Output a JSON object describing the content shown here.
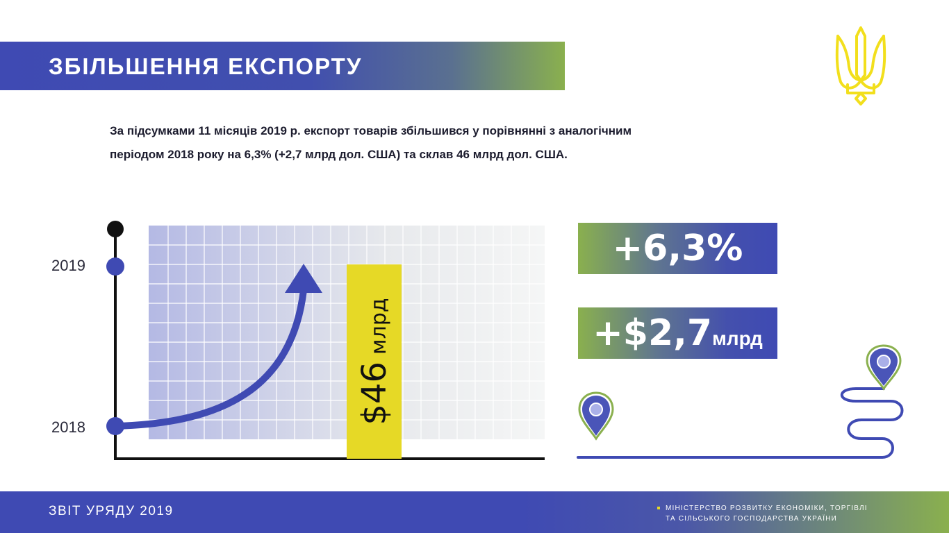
{
  "header": {
    "title": "ЗБІЛЬШЕННЯ ЕКСПОРТУ"
  },
  "emblem": {
    "icon": "trident-icon",
    "color": "#f2df1c"
  },
  "intro": {
    "line1": "За підсумками 11 місяців 2019 р. експорт товарів збільшився у порівнянні з аналогічним",
    "line2": "періодом 2018 року на 6,3% (+2,7 млрд дол. США) та склав 46 млрд дол. США."
  },
  "chart": {
    "year_top": "2019",
    "year_bottom": "2018",
    "value": "$46",
    "value_unit": "млрд"
  },
  "stats": {
    "percent": "+6,3%",
    "amount": "+$2,7",
    "amount_unit": "млрд"
  },
  "footer": {
    "report": "ЗВІТ УРЯДУ 2019",
    "ministry_line1": "МІНІСТЕРСТВО РОЗВИТКУ ЕКОНОМІКИ, ТОРГІВЛІ",
    "ministry_line2": "ТА СІЛЬСЬКОГО ГОСПОДАРСТВА УКРАЇНИ"
  },
  "colors": {
    "primary_blue": "#3f4ab3",
    "accent_green": "#8ab04e",
    "accent_yellow": "#e6d926"
  }
}
